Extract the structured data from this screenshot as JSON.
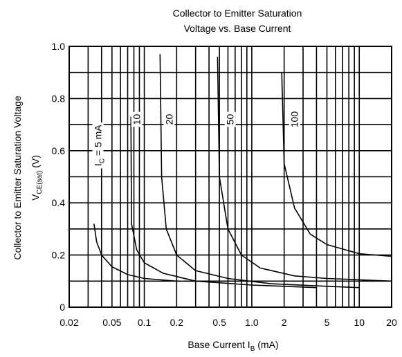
{
  "chart_data": {
    "type": "line",
    "title_line1": "Collector to Emitter Saturation",
    "title_line2": "Voltage vs. Base Current",
    "xlabel": "Base Current I",
    "xlabel_sub": "B",
    "xlabel_unit": " (mA)",
    "ylabel": "Collector to Emitter Saturation Voltage",
    "ylabel2": "V",
    "ylabel2_sub": "CE(sat)",
    "ylabel2_unit": " (V)",
    "xscale": "log",
    "xlim": [
      0.02,
      20
    ],
    "ylim": [
      0,
      1.0
    ],
    "grid": true,
    "x_ticks": [
      {
        "value": 0.02,
        "label": "0.02"
      },
      {
        "value": 0.05,
        "label": "0.05"
      },
      {
        "value": 0.1,
        "label": "0.1"
      },
      {
        "value": 0.2,
        "label": "0.2"
      },
      {
        "value": 0.5,
        "label": "0.5"
      },
      {
        "value": 1.0,
        "label": "1.0"
      },
      {
        "value": 2,
        "label": "2"
      },
      {
        "value": 5,
        "label": "5"
      },
      {
        "value": 10,
        "label": "10"
      },
      {
        "value": 20,
        "label": "20"
      }
    ],
    "y_ticks": [
      {
        "value": 0,
        "label": "0"
      },
      {
        "value": 0.2,
        "label": "0.2"
      },
      {
        "value": 0.4,
        "label": "0.4"
      },
      {
        "value": 0.6,
        "label": "0.6"
      },
      {
        "value": 0.8,
        "label": "0.8"
      },
      {
        "value": 1.0,
        "label": "1.0"
      }
    ],
    "x_grid": [
      0.02,
      0.03,
      0.04,
      0.05,
      0.06,
      0.07,
      0.08,
      0.09,
      0.1,
      0.2,
      0.3,
      0.4,
      0.5,
      0.6,
      0.7,
      0.8,
      0.9,
      1,
      2,
      3,
      4,
      5,
      6,
      7,
      8,
      9,
      10,
      20
    ],
    "y_grid": [
      0,
      0.1,
      0.2,
      0.3,
      0.4,
      0.5,
      0.6,
      0.7,
      0.8,
      0.9,
      1.0
    ],
    "series": [
      {
        "name": "I",
        "label_sub": "C",
        "label_suffix": " = 5 mA",
        "label_at": [
          0.037,
          0.62
        ],
        "points": [
          [
            0.034,
            0.32
          ],
          [
            0.036,
            0.25
          ],
          [
            0.04,
            0.2
          ],
          [
            0.05,
            0.155
          ],
          [
            0.07,
            0.125
          ],
          [
            0.1,
            0.11
          ],
          [
            0.2,
            0.1
          ],
          [
            0.5,
            0.1
          ],
          [
            1.0,
            0.1
          ]
        ]
      },
      {
        "name": "10",
        "label_at": [
          0.085,
          0.72
        ],
        "points": [
          [
            0.075,
            0.73
          ],
          [
            0.076,
            0.32
          ],
          [
            0.085,
            0.22
          ],
          [
            0.1,
            0.17
          ],
          [
            0.15,
            0.13
          ],
          [
            0.3,
            0.1
          ],
          [
            1,
            0.085
          ],
          [
            2,
            0.08
          ],
          [
            4,
            0.075
          ]
        ]
      },
      {
        "name": "20",
        "label_at": [
          0.17,
          0.72
        ],
        "points": [
          [
            0.14,
            0.97
          ],
          [
            0.145,
            0.5
          ],
          [
            0.16,
            0.3
          ],
          [
            0.2,
            0.2
          ],
          [
            0.3,
            0.14
          ],
          [
            0.6,
            0.11
          ],
          [
            1.5,
            0.09
          ],
          [
            5,
            0.08
          ],
          [
            10,
            0.075
          ]
        ]
      },
      {
        "name": "50",
        "label_at": [
          0.63,
          0.72
        ],
        "points": [
          [
            0.48,
            0.96
          ],
          [
            0.5,
            0.5
          ],
          [
            0.6,
            0.3
          ],
          [
            0.8,
            0.2
          ],
          [
            1.2,
            0.15
          ],
          [
            2.5,
            0.12
          ],
          [
            5,
            0.11
          ],
          [
            10,
            0.105
          ],
          [
            20,
            0.1
          ]
        ]
      },
      {
        "name": "100",
        "label_at": [
          2.5,
          0.72
        ],
        "points": [
          [
            1.9,
            0.9
          ],
          [
            2.0,
            0.55
          ],
          [
            2.5,
            0.38
          ],
          [
            3.5,
            0.28
          ],
          [
            5,
            0.24
          ],
          [
            10,
            0.205
          ],
          [
            20,
            0.195
          ]
        ]
      }
    ]
  }
}
